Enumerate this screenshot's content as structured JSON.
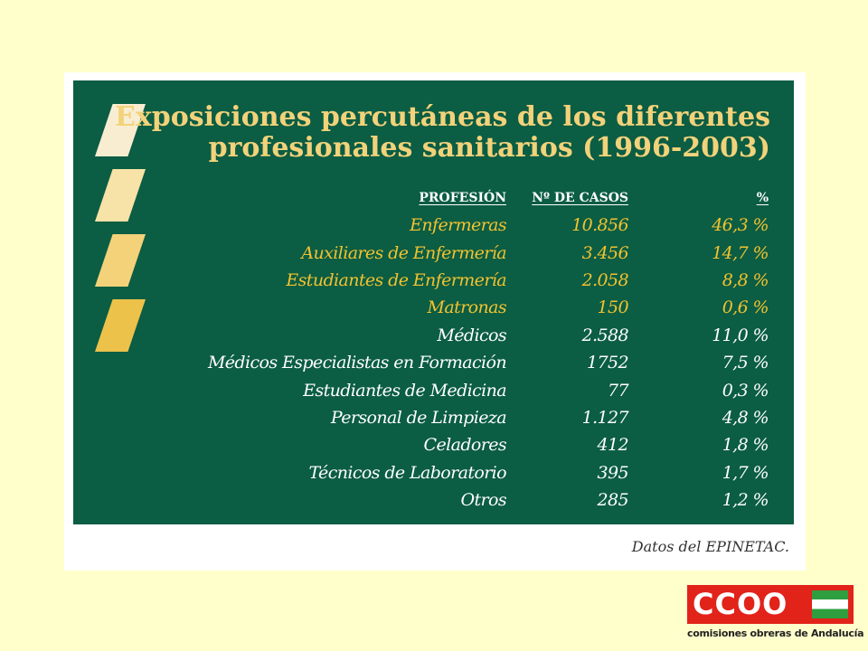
{
  "slide": {
    "title_line1": "Exposiciones percutáneas de los diferentes",
    "title_line2": "profesionales sanitarios (1996-2003)",
    "source": "Datos del EPINETAC."
  },
  "table": {
    "headers": [
      "PROFESIÓN",
      "Nº DE CASOS",
      "%"
    ],
    "rows": [
      {
        "profesion": "Enfermeras",
        "casos": "10.856",
        "pct": "46,3 %"
      },
      {
        "profesion": "Auxiliares de Enfermería",
        "casos": "3.456",
        "pct": "14,7 %"
      },
      {
        "profesion": "Estudiantes de Enfermería",
        "casos": "2.058",
        "pct": "8,8 %"
      },
      {
        "profesion": "Matronas",
        "casos": "150",
        "pct": "0,6 %"
      },
      {
        "profesion": "Médicos",
        "casos": "2.588",
        "pct": "11,0 %"
      },
      {
        "profesion": "Médicos Especialistas en Formación",
        "casos": "1752",
        "pct": "7,5 %"
      },
      {
        "profesion": "Estudiantes de Medicina",
        "casos": "77",
        "pct": "0,3 %"
      },
      {
        "profesion": "Personal de Limpieza",
        "casos": "1.127",
        "pct": "4,8 %"
      },
      {
        "profesion": "Celadores",
        "casos": "412",
        "pct": "1,8 %"
      },
      {
        "profesion": "Técnicos de Laboratorio",
        "casos": "395",
        "pct": "1,7 %"
      },
      {
        "profesion": "Otros",
        "casos": "285",
        "pct": "1,2 %"
      }
    ]
  },
  "logo": {
    "letters": "CCOO",
    "caption": "comisiones obreras de Andalucía"
  },
  "colors": {
    "background": "#ffffcc",
    "panel": "#0b5d43",
    "title": "#f2d27a",
    "highlight": "#f2c230",
    "logo_red": "#e2231a",
    "logo_green": "#2e9e3f"
  }
}
